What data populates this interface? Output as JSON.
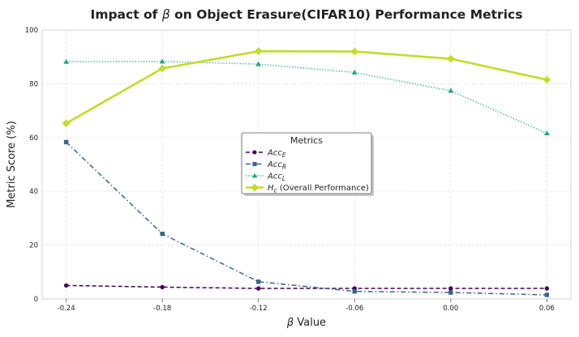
{
  "chart_data": {
    "type": "line",
    "title_parts": [
      "Impact of ",
      "β",
      " on Object Erasure(CIFAR10) Performance Metrics"
    ],
    "xlabel_parts": [
      "β",
      " Value"
    ],
    "ylabel": "Metric Score (%)",
    "x": [
      -0.24,
      -0.18,
      -0.12,
      -0.06,
      0.0,
      0.06
    ],
    "x_tick_labels": [
      "-0.24",
      "-0.18",
      "-0.12",
      "-0.06",
      "0.00",
      "0.06"
    ],
    "xlim": [
      -0.255,
      0.075
    ],
    "ylim": [
      0,
      100
    ],
    "y_ticks": [
      0,
      20,
      40,
      60,
      80,
      100
    ],
    "y_tick_labels": [
      "0",
      "20",
      "40",
      "60",
      "80",
      "100"
    ],
    "grid": true,
    "legend": {
      "title": "Metrics",
      "placement": "center"
    },
    "series": [
      {
        "name_main": "Acc",
        "name_sub": "E",
        "name_rest": "",
        "color": "#440154",
        "linestyle": "dashed",
        "marker": "circle",
        "values": [
          5.0,
          4.4,
          3.9,
          3.9,
          3.9,
          3.9
        ]
      },
      {
        "name_main": "Acc",
        "name_sub": "R",
        "name_rest": "",
        "color": "#3b638e",
        "linestyle": "dashdot",
        "marker": "square",
        "values": [
          58.3,
          24.2,
          6.4,
          2.8,
          2.4,
          1.5
        ]
      },
      {
        "name_main": "Acc",
        "name_sub": "L",
        "name_rest": "",
        "color": "#22a884",
        "linestyle": "dotted",
        "marker": "triangle",
        "values": [
          88.2,
          88.3,
          87.3,
          84.2,
          77.4,
          61.6
        ]
      },
      {
        "name_main": "H",
        "name_sub": "c",
        "name_rest": " (Overall Performance)",
        "color": "#bddf26",
        "linestyle": "solid",
        "marker": "diamond",
        "values": [
          65.3,
          85.7,
          92.1,
          92.0,
          89.3,
          81.5
        ]
      }
    ]
  }
}
